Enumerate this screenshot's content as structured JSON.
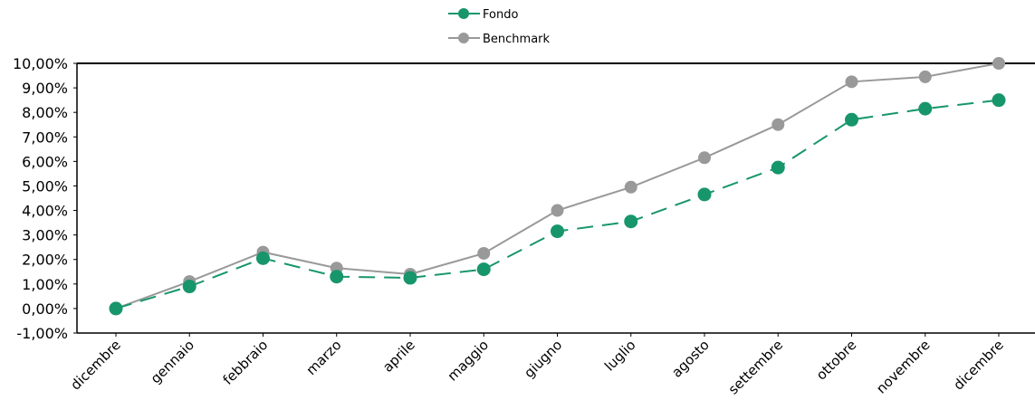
{
  "colors": {
    "fondo": "#17966b",
    "benchmark": "#999999",
    "axis": "#000000"
  },
  "chart_data": {
    "type": "line",
    "title": "",
    "xlabel": "",
    "ylabel": "",
    "ylim": [
      -1,
      10
    ],
    "yticks": [
      "-1,00%",
      "0,00%",
      "1,00%",
      "2,00%",
      "3,00%",
      "4,00%",
      "5,00%",
      "6,00%",
      "7,00%",
      "8,00%",
      "9,00%",
      "10,00%"
    ],
    "categories": [
      "dicembre",
      "gennaio",
      "febbraio",
      "marzo",
      "aprile",
      "maggio",
      "giugno",
      "luglio",
      "agosto",
      "settembre",
      "ottobre",
      "novembre",
      "dicembre"
    ],
    "grid": false,
    "legend_position": "top-center",
    "series": [
      {
        "name": "Fondo",
        "style": "dashed",
        "marker": "circle",
        "values": [
          0.0,
          0.9,
          2.05,
          1.3,
          1.25,
          1.6,
          3.15,
          3.55,
          4.65,
          5.75,
          7.7,
          8.15,
          8.5
        ]
      },
      {
        "name": "Benchmark",
        "style": "solid",
        "marker": "circle",
        "values": [
          0.0,
          1.1,
          2.3,
          1.65,
          1.4,
          2.25,
          4.0,
          4.95,
          6.15,
          7.5,
          9.25,
          9.45,
          10.0
        ]
      }
    ]
  }
}
